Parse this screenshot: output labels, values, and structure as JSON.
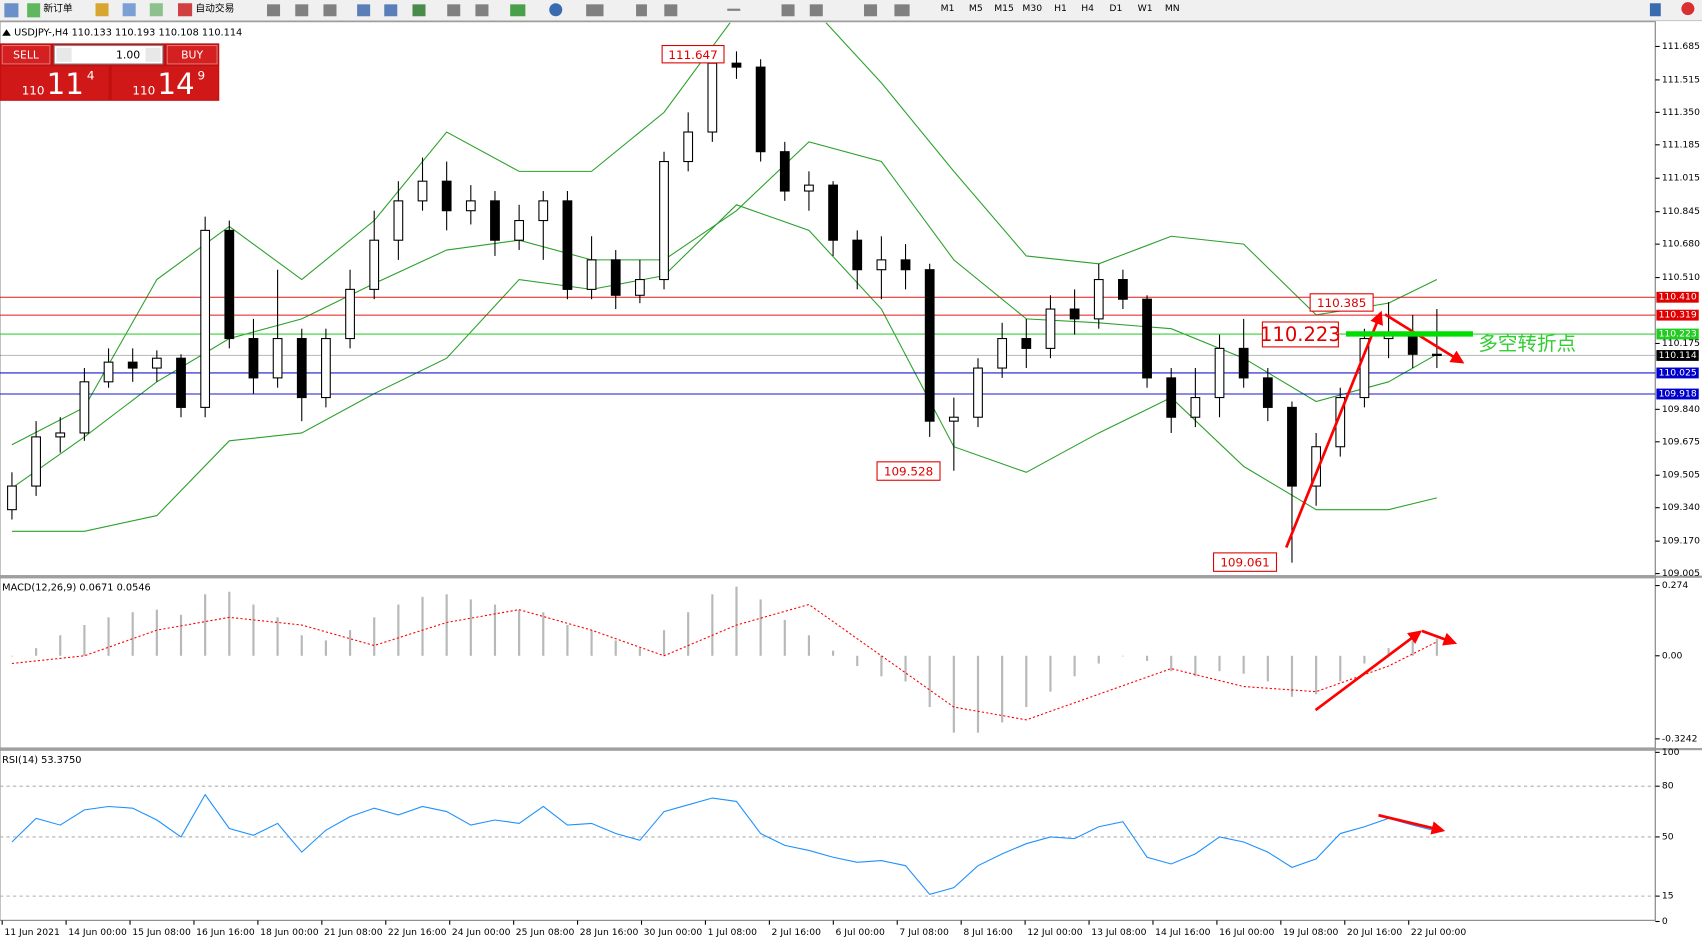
{
  "toolbar": {
    "buttons": [
      "新订单",
      "自动交易"
    ],
    "timeframes": [
      "M1",
      "M5",
      "M15",
      "M30",
      "H1",
      "H4",
      "D1",
      "W1",
      "MN"
    ]
  },
  "trade_panel": {
    "sell": "SELL",
    "buy": "BUY",
    "volume": "1.00",
    "bid": {
      "big": "110",
      "main": "11",
      "small": "4"
    },
    "ask": {
      "big": "110",
      "main": "14",
      "small": "9"
    }
  },
  "chart_data": [
    {
      "type": "candlestick",
      "title": "USDJPY-,H4",
      "ohlc_info": "110.133 110.193 110.108 110.114",
      "candles": [
        [
          109.33,
          109.52,
          109.28,
          109.45
        ],
        [
          109.45,
          109.78,
          109.4,
          109.7
        ],
        [
          109.7,
          109.8,
          109.62,
          109.72
        ],
        [
          109.72,
          110.05,
          109.68,
          109.98
        ],
        [
          109.98,
          110.15,
          109.95,
          110.08
        ],
        [
          110.08,
          110.15,
          109.98,
          110.05
        ],
        [
          110.05,
          110.14,
          109.98,
          110.1
        ],
        [
          110.1,
          110.12,
          109.8,
          109.85
        ],
        [
          109.85,
          110.82,
          109.8,
          110.75
        ],
        [
          110.75,
          110.8,
          110.15,
          110.2
        ],
        [
          110.2,
          110.3,
          109.92,
          110.0
        ],
        [
          110.0,
          110.55,
          109.95,
          110.2
        ],
        [
          110.2,
          110.25,
          109.78,
          109.9
        ],
        [
          109.9,
          110.25,
          109.85,
          110.2
        ],
        [
          110.2,
          110.55,
          110.15,
          110.45
        ],
        [
          110.45,
          110.85,
          110.4,
          110.7
        ],
        [
          110.7,
          111.0,
          110.6,
          110.9
        ],
        [
          110.9,
          111.12,
          110.85,
          111.0
        ],
        [
          111.0,
          111.1,
          110.75,
          110.85
        ],
        [
          110.85,
          110.98,
          110.78,
          110.9
        ],
        [
          110.9,
          110.95,
          110.62,
          110.7
        ],
        [
          110.7,
          110.88,
          110.65,
          110.8
        ],
        [
          110.8,
          110.95,
          110.6,
          110.9
        ],
        [
          110.9,
          110.95,
          110.4,
          110.45
        ],
        [
          110.45,
          110.72,
          110.4,
          110.6
        ],
        [
          110.6,
          110.65,
          110.35,
          110.42
        ],
        [
          110.42,
          110.6,
          110.38,
          110.5
        ],
        [
          110.5,
          111.15,
          110.45,
          111.1
        ],
        [
          111.1,
          111.35,
          111.05,
          111.25
        ],
        [
          111.25,
          111.647,
          111.2,
          111.6
        ],
        [
          111.6,
          111.66,
          111.52,
          111.58
        ],
        [
          111.58,
          111.62,
          111.1,
          111.15
        ],
        [
          111.15,
          111.2,
          110.9,
          110.95
        ],
        [
          110.95,
          111.05,
          110.85,
          110.98
        ],
        [
          110.98,
          111.0,
          110.62,
          110.7
        ],
        [
          110.7,
          110.75,
          110.45,
          110.55
        ],
        [
          110.55,
          110.72,
          110.4,
          110.6
        ],
        [
          110.6,
          110.68,
          110.45,
          110.55
        ],
        [
          110.55,
          110.58,
          109.7,
          109.78
        ],
        [
          109.78,
          109.9,
          109.528,
          109.8
        ],
        [
          109.8,
          110.1,
          109.75,
          110.05
        ],
        [
          110.05,
          110.28,
          110.0,
          110.2
        ],
        [
          110.2,
          110.3,
          110.05,
          110.15
        ],
        [
          110.15,
          110.42,
          110.1,
          110.35
        ],
        [
          110.35,
          110.45,
          110.22,
          110.3
        ],
        [
          110.3,
          110.58,
          110.25,
          110.5
        ],
        [
          110.5,
          110.55,
          110.35,
          110.4
        ],
        [
          110.4,
          110.42,
          109.95,
          110.0
        ],
        [
          110.0,
          110.05,
          109.72,
          109.8
        ],
        [
          109.8,
          110.05,
          109.75,
          109.9
        ],
        [
          109.9,
          110.22,
          109.8,
          110.15
        ],
        [
          110.15,
          110.3,
          109.95,
          110.0
        ],
        [
          110.0,
          110.05,
          109.78,
          109.85
        ],
        [
          109.85,
          109.88,
          109.061,
          109.45
        ],
        [
          109.45,
          109.72,
          109.35,
          109.65
        ],
        [
          109.65,
          109.95,
          109.6,
          109.9
        ],
        [
          109.9,
          110.25,
          109.85,
          110.2
        ],
        [
          110.2,
          110.385,
          110.1,
          110.22
        ],
        [
          110.22,
          110.32,
          110.05,
          110.12
        ],
        [
          110.12,
          110.35,
          110.05,
          110.114
        ]
      ],
      "bands": {
        "color": "#2ca02c",
        "x": [
          0,
          3,
          6,
          9,
          12,
          15,
          18,
          21,
          24,
          27,
          30,
          33,
          36,
          39,
          42,
          45,
          48,
          51,
          54,
          57,
          59
        ],
        "upper": [
          109.66,
          109.85,
          110.5,
          110.77,
          110.5,
          110.8,
          111.25,
          111.05,
          111.05,
          111.35,
          111.85,
          111.9,
          111.5,
          111.05,
          110.62,
          110.58,
          110.72,
          110.68,
          110.32,
          110.38,
          110.5
        ],
        "middle": [
          109.44,
          109.7,
          109.98,
          110.2,
          110.3,
          110.48,
          110.65,
          110.7,
          110.6,
          110.6,
          110.85,
          111.2,
          111.1,
          110.6,
          110.3,
          110.28,
          110.25,
          110.1,
          109.88,
          109.98,
          110.12
        ],
        "lower": [
          109.22,
          109.22,
          109.3,
          109.68,
          109.72,
          109.92,
          110.1,
          110.5,
          110.45,
          110.52,
          110.88,
          110.75,
          110.35,
          109.65,
          109.52,
          109.72,
          109.9,
          109.55,
          109.33,
          109.33,
          109.39
        ]
      },
      "ylim": [
        109.0,
        111.8
      ],
      "yticks": [
        111.685,
        111.515,
        {
          "value": 111.35,
          "label": "111.350"
        },
        111.185,
        111.015,
        110.845,
        {
          "value": 110.68,
          "label": "110.680"
        },
        {
          "value": 110.51,
          "label": "110.510"
        },
        110.175,
        {
          "value": 109.84,
          "label": "109.840"
        },
        109.675,
        109.505,
        {
          "value": 109.34,
          "label": "109.340"
        },
        {
          "value": 109.17,
          "label": "109.170"
        },
        109.005
      ],
      "levels": [
        {
          "value": 110.41,
          "label": "110.410",
          "color": "#e00000"
        },
        {
          "value": 110.319,
          "label": "110.319",
          "color": "#e00000"
        },
        {
          "value": 110.223,
          "label": "110.223",
          "color": "#22cc22"
        },
        {
          "value": 110.114,
          "label": "110.114",
          "color": "#000000"
        },
        {
          "value": 110.025,
          "label": "110.025",
          "color": "#0000cc"
        },
        {
          "value": 109.918,
          "label": "109.918",
          "color": "#0000cc"
        }
      ],
      "annotations": [
        "111.647",
        "109.528",
        "110.385",
        "110.223",
        "109.061",
        "多空转折点"
      ]
    },
    {
      "type": "macd",
      "title": "MACD(12,26,9) 0.0671 0.0546",
      "histogram": {
        "color": "#b8b8b8",
        "values": [
          0.0,
          0.03,
          0.08,
          0.12,
          0.15,
          0.17,
          0.18,
          0.16,
          0.24,
          0.25,
          0.2,
          0.15,
          0.08,
          0.06,
          0.1,
          0.15,
          0.2,
          0.23,
          0.24,
          0.22,
          0.2,
          0.18,
          0.17,
          0.12,
          0.1,
          0.06,
          0.03,
          0.1,
          0.17,
          0.24,
          0.27,
          0.22,
          0.14,
          0.08,
          0.02,
          -0.04,
          -0.08,
          -0.1,
          -0.2,
          -0.3,
          -0.3,
          -0.26,
          -0.2,
          -0.14,
          -0.08,
          -0.03,
          0.0,
          -0.02,
          -0.06,
          -0.08,
          -0.06,
          -0.07,
          -0.1,
          -0.16,
          -0.15,
          -0.1,
          -0.03,
          0.03,
          0.06,
          0.0671
        ]
      },
      "signal": {
        "color": "#ff0000",
        "x": [
          0,
          3,
          6,
          9,
          12,
          15,
          18,
          21,
          24,
          27,
          30,
          33,
          36,
          39,
          42,
          45,
          48,
          51,
          54,
          57,
          59
        ],
        "values": [
          -0.03,
          0.0,
          0.1,
          0.15,
          0.12,
          0.04,
          0.13,
          0.18,
          0.1,
          0.0,
          0.12,
          0.2,
          0.0,
          -0.2,
          -0.25,
          -0.15,
          -0.05,
          -0.12,
          -0.14,
          -0.04,
          0.0546
        ]
      },
      "ylim": [
        -0.36,
        0.3
      ],
      "yticks": [
        0.274,
        {
          "value": 0,
          "label": "0.00"
        },
        -0.3242
      ]
    },
    {
      "type": "line",
      "title": "RSI(14) 53.3750",
      "color": "#1e90ff",
      "values": [
        47,
        61,
        57,
        66,
        68,
        67,
        60,
        50,
        75,
        55,
        51,
        58,
        41,
        54,
        62,
        67,
        63,
        68,
        65,
        57,
        60,
        58,
        68,
        57,
        58,
        52,
        48,
        65,
        69,
        73,
        71,
        52,
        45,
        42,
        38,
        35,
        36,
        33,
        16,
        20,
        33,
        40,
        46,
        50,
        49,
        56,
        59,
        38,
        34,
        40,
        50,
        47,
        41,
        32,
        37,
        52,
        56,
        61,
        57,
        53.375
      ],
      "ylim": [
        0,
        100
      ],
      "yticks": [
        0,
        15,
        50,
        80,
        100
      ],
      "date_labels": [
        "11 Jun 2021",
        "14 Jun 00:00",
        "15 Jun 08:00",
        "16 Jun 16:00",
        "18 Jun 00:00",
        "21 Jun 08:00",
        "22 Jun 16:00",
        "24 Jun 00:00",
        "25 Jun 08:00",
        "28 Jun 16:00",
        "30 Jun 00:00",
        "1 Jul 08:00",
        "2 Jul 16:00",
        "6 Jul 00:00",
        "7 Jul 08:00",
        "8 Jul 16:00",
        "12 Jul 00:00",
        "13 Jul 08:00",
        "14 Jul 16:00",
        "16 Jul 00:00",
        "19 Jul 08:00",
        "20 Jul 16:00",
        "22 Jul 00:00"
      ]
    }
  ]
}
